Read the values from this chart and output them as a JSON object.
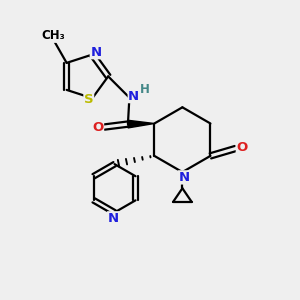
{
  "background_color": "#efefef",
  "atom_colors": {
    "C": "#000000",
    "N": "#2020dd",
    "O": "#dd2020",
    "S": "#bbbb00",
    "H": "#448888"
  },
  "figsize": [
    3.0,
    3.0
  ],
  "dpi": 100,
  "scale": 10
}
